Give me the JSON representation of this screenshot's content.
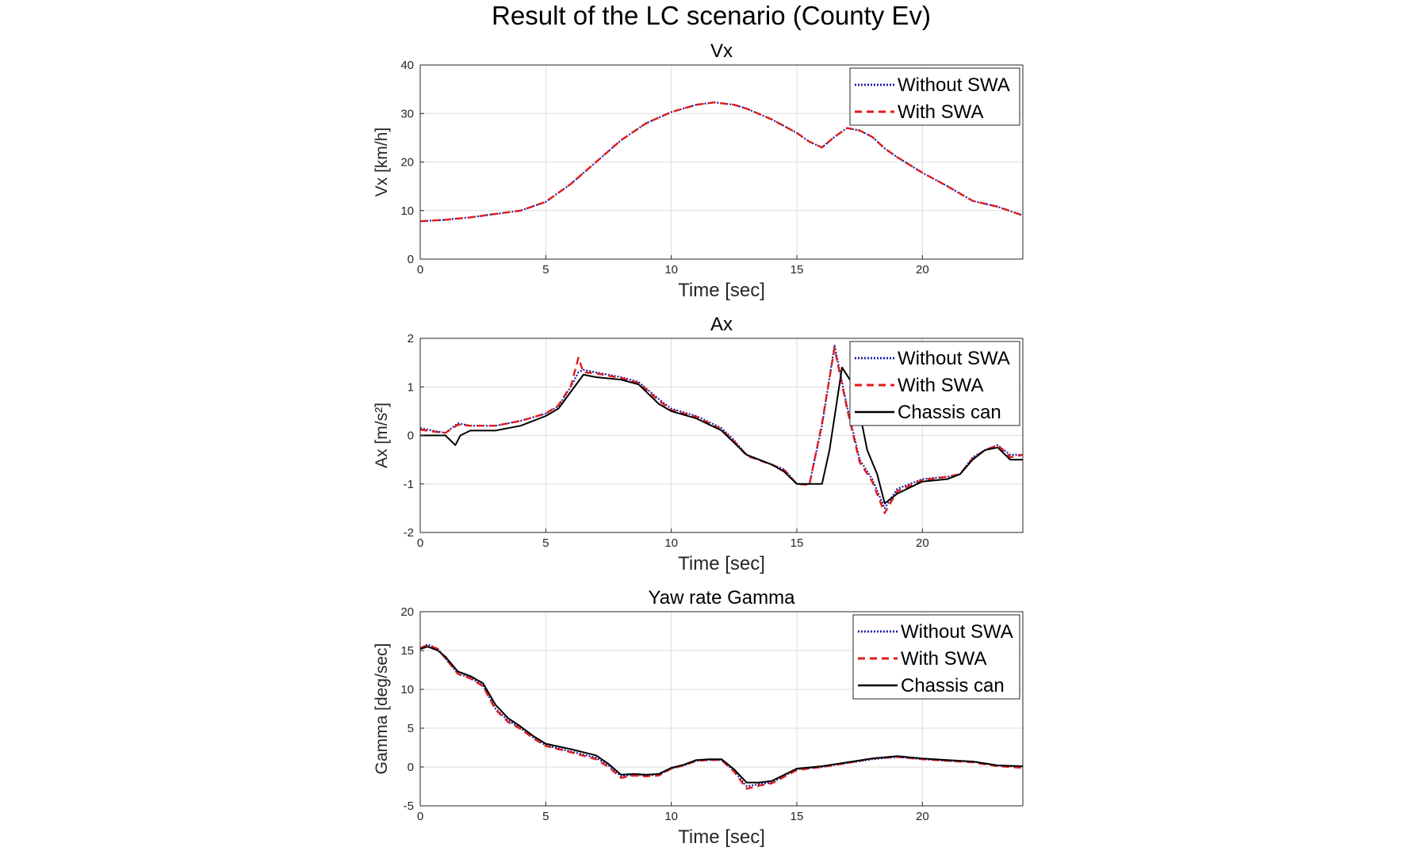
{
  "figure": {
    "title": "Result of the LC scenario (County Ev)"
  },
  "series_styles": {
    "Without SWA": {
      "color": "#1a1aa6",
      "dash": "2,2",
      "width": 2.2
    },
    "With SWA": {
      "color": "#e01b1b",
      "dash": "9,6",
      "width": 2.4
    },
    "Chassis can": {
      "color": "#000000",
      "dash": "",
      "width": 2
    }
  },
  "chart_data": [
    {
      "type": "line",
      "title": "Vx",
      "xlabel": "Time [sec]",
      "ylabel": "Vx [km/h]",
      "xlim": [
        0,
        24
      ],
      "ylim": [
        0,
        40
      ],
      "xticks": [
        0,
        5,
        10,
        15,
        20
      ],
      "yticks": [
        0,
        10,
        20,
        30,
        40
      ],
      "grid": true,
      "legend": "top-right",
      "series": [
        {
          "name": "Without SWA",
          "x": [
            0,
            1,
            2,
            3,
            4,
            5,
            6,
            7,
            8,
            9,
            10,
            11,
            11.7,
            12.5,
            13,
            14,
            15,
            15.5,
            16,
            16.5,
            17,
            17.5,
            18,
            18.5,
            19,
            20,
            21,
            22,
            23,
            24
          ],
          "y": [
            7.8,
            8.1,
            8.6,
            9.3,
            10,
            11.8,
            15.5,
            20,
            24.5,
            28,
            30.3,
            31.8,
            32.3,
            31.8,
            31,
            28.8,
            26,
            24.2,
            23,
            25.2,
            27,
            26.5,
            25.2,
            22.8,
            21,
            17.8,
            15,
            12,
            10.8,
            9
          ]
        },
        {
          "name": "With SWA",
          "x": [
            0,
            1,
            2,
            3,
            4,
            5,
            6,
            7,
            8,
            9,
            10,
            11,
            11.7,
            12.5,
            13,
            14,
            15,
            15.5,
            16,
            16.5,
            17,
            17.5,
            18,
            18.5,
            19,
            20,
            21,
            22,
            23,
            24
          ],
          "y": [
            7.8,
            8.1,
            8.6,
            9.3,
            10,
            11.8,
            15.5,
            20,
            24.5,
            28,
            30.3,
            31.8,
            32.3,
            31.8,
            31,
            28.8,
            26,
            24.2,
            23,
            25.2,
            27,
            26.5,
            25.2,
            22.8,
            21,
            17.8,
            15,
            12,
            10.8,
            9
          ]
        }
      ]
    },
    {
      "type": "line",
      "title": "Ax",
      "xlabel": "Time [sec]",
      "ylabel": "Ax [m/s²]",
      "xlim": [
        0,
        24
      ],
      "ylim": [
        -2,
        2
      ],
      "xticks": [
        0,
        5,
        10,
        15,
        20
      ],
      "yticks": [
        -2,
        -1,
        0,
        1,
        2
      ],
      "grid": true,
      "legend": "top-right",
      "series": [
        {
          "name": "Without SWA",
          "x": [
            0,
            0.5,
            1,
            1.5,
            2,
            3,
            4,
            5,
            5.5,
            6,
            6.3,
            6.5,
            7,
            8,
            8.7,
            9.5,
            10,
            11,
            12,
            12.5,
            13,
            14,
            14.5,
            15,
            15.5,
            16,
            16.5,
            17,
            17.5,
            18,
            18.5,
            19,
            20,
            21,
            21.5,
            22,
            22.5,
            23,
            23.5,
            24
          ],
          "y": [
            0.15,
            0.1,
            0.05,
            0.25,
            0.2,
            0.2,
            0.3,
            0.45,
            0.6,
            1.0,
            1.3,
            1.35,
            1.3,
            1.2,
            1.1,
            0.75,
            0.55,
            0.4,
            0.15,
            -0.1,
            -0.4,
            -0.6,
            -0.7,
            -1.0,
            -1.0,
            0.2,
            1.85,
            0.6,
            -0.5,
            -0.9,
            -1.5,
            -1.1,
            -0.9,
            -0.85,
            -0.8,
            -0.45,
            -0.3,
            -0.2,
            -0.4,
            -0.4
          ]
        },
        {
          "name": "With SWA",
          "x": [
            0,
            0.5,
            1,
            1.5,
            2,
            3,
            4,
            5,
            5.5,
            6,
            6.3,
            6.5,
            7,
            8,
            8.7,
            9.5,
            10,
            11,
            12,
            12.5,
            13,
            14,
            14.5,
            15,
            15.5,
            16,
            16.5,
            17,
            17.5,
            18,
            18.5,
            19,
            20,
            21,
            21.5,
            22,
            22.5,
            23,
            23.5,
            24
          ],
          "y": [
            0.12,
            0.08,
            0.05,
            0.22,
            0.2,
            0.2,
            0.3,
            0.45,
            0.62,
            1.02,
            1.6,
            1.3,
            1.28,
            1.18,
            1.08,
            0.72,
            0.52,
            0.38,
            0.12,
            -0.12,
            -0.42,
            -0.6,
            -0.72,
            -1.0,
            -1.02,
            0.25,
            1.8,
            0.55,
            -0.55,
            -0.95,
            -1.6,
            -1.15,
            -0.92,
            -0.85,
            -0.8,
            -0.48,
            -0.3,
            -0.2,
            -0.45,
            -0.4
          ]
        },
        {
          "name": "Chassis can",
          "x": [
            0,
            1,
            1.2,
            1.4,
            1.6,
            2,
            3,
            3.5,
            4,
            5,
            5.5,
            6,
            6.5,
            7,
            8,
            8.7,
            9.5,
            10,
            11,
            12,
            12.5,
            13,
            14,
            14.5,
            15,
            15.5,
            16,
            16.3,
            16.8,
            17.3,
            17.8,
            18.2,
            18.5,
            19,
            20,
            21,
            21.5,
            22,
            22.5,
            23,
            23.5,
            24
          ],
          "y": [
            0,
            0,
            -0.1,
            -0.2,
            0,
            0.1,
            0.1,
            0.15,
            0.2,
            0.4,
            0.55,
            0.9,
            1.25,
            1.2,
            1.15,
            1.05,
            0.65,
            0.5,
            0.35,
            0.1,
            -0.15,
            -0.4,
            -0.6,
            -0.75,
            -1.0,
            -1.0,
            -1.0,
            -0.3,
            1.4,
            1.0,
            -0.3,
            -0.8,
            -1.4,
            -1.2,
            -0.95,
            -0.9,
            -0.8,
            -0.5,
            -0.3,
            -0.25,
            -0.5,
            -0.5
          ]
        }
      ]
    },
    {
      "type": "line",
      "title": "Yaw rate Gamma",
      "xlabel": "Time [sec]",
      "ylabel": "Gamma [deg/sec]",
      "xlim": [
        0,
        24
      ],
      "ylim": [
        -5,
        20
      ],
      "xticks": [
        0,
        5,
        10,
        15,
        20
      ],
      "yticks": [
        -5,
        0,
        5,
        10,
        15,
        20
      ],
      "grid": true,
      "legend": "top-right",
      "series": [
        {
          "name": "Without SWA",
          "x": [
            0,
            0.3,
            0.7,
            1,
            1.5,
            2,
            2.5,
            3,
            3.5,
            4,
            4.5,
            5,
            6,
            7,
            7.5,
            8,
            8.5,
            9,
            9.5,
            10,
            10.5,
            11,
            11.5,
            12,
            12.5,
            13,
            13.5,
            14,
            15,
            16,
            17,
            18,
            19,
            20,
            21,
            22,
            23,
            24
          ],
          "y": [
            15.3,
            15.8,
            15.2,
            14,
            12,
            11.5,
            10.5,
            7.5,
            6,
            5,
            3.8,
            2.8,
            2,
            1.2,
            0.2,
            -1.2,
            -1,
            -1.1,
            -1,
            -0.2,
            0.2,
            0.8,
            0.9,
            0.9,
            -0.5,
            -2.5,
            -2.2,
            -2,
            -0.3,
            0,
            0.5,
            1,
            1.3,
            1,
            0.8,
            0.7,
            0.2,
            0
          ]
        },
        {
          "name": "With SWA",
          "x": [
            0,
            0.3,
            0.7,
            1,
            1.5,
            2,
            2.5,
            3,
            3.5,
            4,
            4.5,
            5,
            6,
            7,
            7.5,
            8,
            8.5,
            9,
            9.5,
            10,
            10.5,
            11,
            11.5,
            12,
            12.5,
            13,
            13.5,
            14,
            15,
            16,
            17,
            18,
            19,
            20,
            21,
            22,
            23,
            24
          ],
          "y": [
            15.3,
            15.7,
            15.2,
            14,
            12,
            11.4,
            10.4,
            7.4,
            5.8,
            4.9,
            3.7,
            2.7,
            1.9,
            1.0,
            0.0,
            -1.4,
            -1.1,
            -1.2,
            -1.1,
            -0.2,
            0.2,
            0.8,
            0.9,
            0.9,
            -0.6,
            -2.8,
            -2.4,
            -2.1,
            -0.4,
            0,
            0.5,
            1.1,
            1.3,
            1,
            0.8,
            0.6,
            0.1,
            -0.1
          ]
        },
        {
          "name": "Chassis can",
          "x": [
            0,
            0.3,
            0.7,
            1,
            1.5,
            2,
            2.5,
            3,
            3.5,
            4,
            4.5,
            5,
            6,
            7,
            7.5,
            8,
            8.5,
            9,
            9.5,
            10,
            10.5,
            11,
            11.5,
            12,
            12.5,
            13,
            13.5,
            14,
            15,
            16,
            17,
            18,
            19,
            20,
            21,
            22,
            23,
            24
          ],
          "y": [
            15.2,
            15.5,
            15.0,
            14.2,
            12.3,
            11.7,
            10.8,
            8.0,
            6.3,
            5.2,
            4.0,
            3.0,
            2.3,
            1.5,
            0.4,
            -1.0,
            -0.9,
            -1.0,
            -0.9,
            -0.1,
            0.3,
            0.9,
            1.0,
            1.0,
            -0.3,
            -2.0,
            -2.0,
            -1.8,
            -0.2,
            0.1,
            0.6,
            1.1,
            1.4,
            1.1,
            0.9,
            0.7,
            0.2,
            0.1
          ]
        }
      ]
    }
  ]
}
